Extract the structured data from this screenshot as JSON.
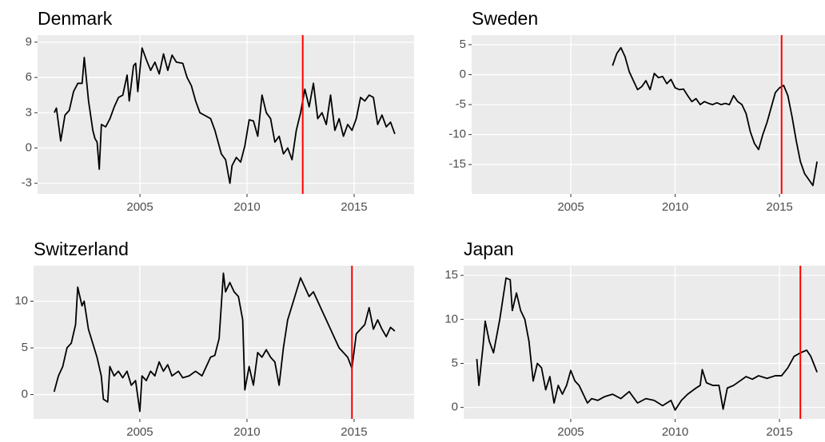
{
  "chart_data": [
    {
      "type": "line",
      "title": "Denmark",
      "color": "#000000",
      "x": [
        2001.0,
        2001.1,
        2001.3,
        2001.5,
        2001.7,
        2001.9,
        2002.1,
        2002.3,
        2002.4,
        2002.6,
        2002.8,
        2002.9,
        2003.0,
        2003.1,
        2003.2,
        2003.4,
        2003.6,
        2003.8,
        2004.0,
        2004.2,
        2004.4,
        2004.5,
        2004.7,
        2004.8,
        2004.9,
        2005.1,
        2005.3,
        2005.5,
        2005.7,
        2005.9,
        2006.1,
        2006.3,
        2006.5,
        2006.7,
        2007.0,
        2007.2,
        2007.4,
        2007.6,
        2007.8,
        2008.0,
        2008.3,
        2008.5,
        2008.8,
        2009.0,
        2009.2,
        2009.3,
        2009.5,
        2009.7,
        2009.9,
        2010.1,
        2010.3,
        2010.5,
        2010.7,
        2010.9,
        2011.1,
        2011.3,
        2011.5,
        2011.7,
        2011.9,
        2012.1,
        2012.3,
        2012.5,
        2012.7,
        2012.9,
        2013.1,
        2013.3,
        2013.5,
        2013.7,
        2013.9,
        2014.1,
        2014.3,
        2014.5,
        2014.7,
        2014.9,
        2015.1,
        2015.3,
        2015.5,
        2015.7,
        2015.9,
        2016.1,
        2016.3,
        2016.5,
        2016.7,
        2016.9
      ],
      "values": [
        3.0,
        3.4,
        0.6,
        2.8,
        3.2,
        4.8,
        5.5,
        5.5,
        7.7,
        4.0,
        1.5,
        0.8,
        0.5,
        -1.8,
        2.0,
        1.8,
        2.5,
        3.5,
        4.3,
        4.5,
        6.2,
        4.0,
        7.0,
        7.2,
        4.8,
        8.5,
        7.5,
        6.6,
        7.3,
        6.3,
        8.0,
        6.6,
        7.9,
        7.3,
        7.2,
        6.0,
        5.3,
        4.0,
        3.0,
        2.8,
        2.5,
        1.5,
        -0.5,
        -1.0,
        -3.0,
        -1.5,
        -0.8,
        -1.2,
        0.2,
        2.4,
        2.3,
        1.0,
        4.5,
        3.0,
        2.5,
        0.5,
        1.0,
        -0.5,
        0.0,
        -1.0,
        1.5,
        3.0,
        5.0,
        3.5,
        5.5,
        2.5,
        3.0,
        2.0,
        4.5,
        1.5,
        2.5,
        1.0,
        2.0,
        1.5,
        2.5,
        4.3,
        4.0,
        4.5,
        4.3,
        2.0,
        2.8,
        1.8,
        2.2,
        1.2
      ],
      "xlim": [
        2000.22,
        2017.8
      ],
      "xticks": [
        2005,
        2010,
        2015
      ],
      "ylim": [
        -3.9,
        9.6
      ],
      "yticks": [
        -3,
        0,
        3,
        6,
        9
      ],
      "vline": 2012.6,
      "vline_color": "#ff0000",
      "grid": true
    },
    {
      "type": "line",
      "title": "Sweden",
      "color": "#000000",
      "x": [
        2007.0,
        2007.2,
        2007.4,
        2007.6,
        2007.8,
        2008.0,
        2008.2,
        2008.4,
        2008.6,
        2008.8,
        2009.0,
        2009.2,
        2009.4,
        2009.6,
        2009.8,
        2010.0,
        2010.2,
        2010.4,
        2010.6,
        2010.8,
        2011.0,
        2011.2,
        2011.4,
        2011.6,
        2011.8,
        2012.0,
        2012.2,
        2012.4,
        2012.6,
        2012.8,
        2013.0,
        2013.2,
        2013.4,
        2013.6,
        2013.8,
        2014.0,
        2014.2,
        2014.4,
        2014.6,
        2014.8,
        2015.0,
        2015.2,
        2015.4,
        2015.6,
        2015.8,
        2016.0,
        2016.2,
        2016.4,
        2016.6,
        2016.8
      ],
      "values": [
        1.5,
        3.5,
        4.5,
        3.0,
        0.5,
        -1.0,
        -2.5,
        -2.0,
        -1.0,
        -2.5,
        0.2,
        -0.5,
        -0.3,
        -1.5,
        -0.8,
        -2.2,
        -2.5,
        -2.4,
        -3.5,
        -4.5,
        -4.0,
        -5.0,
        -4.5,
        -4.8,
        -5.0,
        -4.7,
        -5.0,
        -4.8,
        -5.0,
        -3.5,
        -4.5,
        -5.0,
        -6.5,
        -9.5,
        -11.5,
        -12.5,
        -10.0,
        -8.0,
        -5.5,
        -3.0,
        -2.2,
        -1.8,
        -3.5,
        -7.0,
        -11.0,
        -14.5,
        -16.5,
        -17.5,
        -18.5,
        -14.5
      ],
      "xlim": [
        2000.25,
        2017.18
      ],
      "xticks": [
        2005,
        2010,
        2015
      ],
      "ylim": [
        -19.9,
        6.6
      ],
      "yticks": [
        -15,
        -10,
        -5,
        0,
        5
      ],
      "vline": 2015.1,
      "vline_color": "#ff0000",
      "grid": true
    },
    {
      "type": "line",
      "title": "Switzerland",
      "color": "#000000",
      "x": [
        2001.0,
        2001.2,
        2001.4,
        2001.6,
        2001.8,
        2002.0,
        2002.1,
        2002.3,
        2002.4,
        2002.6,
        2002.8,
        2003.0,
        2003.2,
        2003.3,
        2003.5,
        2003.6,
        2003.8,
        2004.0,
        2004.2,
        2004.4,
        2004.6,
        2004.8,
        2005.0,
        2005.1,
        2005.3,
        2005.5,
        2005.7,
        2005.9,
        2006.1,
        2006.3,
        2006.5,
        2006.8,
        2007.0,
        2007.3,
        2007.6,
        2007.9,
        2008.1,
        2008.3,
        2008.5,
        2008.7,
        2008.9,
        2009.0,
        2009.2,
        2009.4,
        2009.6,
        2009.8,
        2009.9,
        2010.1,
        2010.3,
        2010.5,
        2010.7,
        2010.9,
        2011.1,
        2011.3,
        2011.5,
        2011.7,
        2011.9,
        2012.1,
        2012.3,
        2012.5,
        2012.7,
        2012.9,
        2013.1,
        2013.3,
        2013.5,
        2013.7,
        2013.9,
        2014.1,
        2014.3,
        2014.5,
        2014.7,
        2014.9,
        2015.1,
        2015.3,
        2015.5,
        2015.7,
        2015.9,
        2016.1,
        2016.3,
        2016.5,
        2016.7,
        2016.9
      ],
      "values": [
        0.3,
        2.0,
        3.0,
        5.0,
        5.5,
        7.5,
        11.5,
        9.5,
        10.0,
        7.0,
        5.5,
        4.0,
        2.0,
        -0.5,
        -0.8,
        3.0,
        2.0,
        2.5,
        1.8,
        2.5,
        1.0,
        1.5,
        -1.8,
        2.0,
        1.5,
        2.5,
        2.0,
        3.5,
        2.5,
        3.2,
        2.0,
        2.5,
        1.8,
        2.0,
        2.5,
        2.0,
        3.0,
        4.0,
        4.2,
        6.0,
        13.0,
        11.0,
        12.0,
        11.0,
        10.5,
        8.0,
        0.5,
        3.0,
        1.0,
        4.5,
        4.0,
        4.8,
        4.0,
        3.5,
        1.0,
        5.0,
        8.0,
        9.5,
        11.0,
        12.5,
        11.5,
        10.5,
        11.0,
        10.0,
        9.0,
        8.0,
        7.0,
        6.0,
        5.0,
        4.5,
        4.0,
        2.8,
        6.5,
        7.0,
        7.5,
        9.3,
        7.0,
        8.0,
        7.0,
        6.2,
        7.2,
        6.8
      ],
      "xlim": [
        2000.04,
        2017.8
      ],
      "xticks": [
        2005,
        2010,
        2015
      ],
      "ylim": [
        -2.6,
        13.8
      ],
      "yticks": [
        0,
        5,
        10
      ],
      "vline": 2014.9,
      "vline_color": "#ff0000",
      "grid": true
    },
    {
      "type": "line",
      "title": "Japan",
      "color": "#000000",
      "x": [
        2000.5,
        2000.6,
        2000.8,
        2000.9,
        2001.1,
        2001.3,
        2001.6,
        2001.9,
        2002.1,
        2002.2,
        2002.4,
        2002.6,
        2002.8,
        2003.0,
        2003.2,
        2003.4,
        2003.6,
        2003.8,
        2004.0,
        2004.2,
        2004.4,
        2004.6,
        2004.8,
        2005.0,
        2005.2,
        2005.4,
        2005.6,
        2005.8,
        2006.0,
        2006.3,
        2006.6,
        2007.0,
        2007.4,
        2007.8,
        2008.2,
        2008.6,
        2009.0,
        2009.4,
        2009.8,
        2010.0,
        2010.3,
        2010.6,
        2011.0,
        2011.2,
        2011.3,
        2011.5,
        2011.8,
        2012.1,
        2012.3,
        2012.5,
        2012.8,
        2013.1,
        2013.4,
        2013.7,
        2014.0,
        2014.4,
        2014.8,
        2015.1,
        2015.4,
        2015.7,
        2016.0,
        2016.3,
        2016.5,
        2016.8
      ],
      "values": [
        5.5,
        2.5,
        7.0,
        9.8,
        7.5,
        6.2,
        10.0,
        14.7,
        14.5,
        11.0,
        13.0,
        11.0,
        10.0,
        7.5,
        3.0,
        5.0,
        4.5,
        2.0,
        3.5,
        0.5,
        2.5,
        1.5,
        2.5,
        4.2,
        3.0,
        2.5,
        1.5,
        0.5,
        1.0,
        0.8,
        1.2,
        1.5,
        1.0,
        1.8,
        0.5,
        1.0,
        0.8,
        0.2,
        0.8,
        -0.3,
        0.8,
        1.5,
        2.2,
        2.5,
        4.3,
        2.8,
        2.5,
        2.5,
        -0.2,
        2.2,
        2.5,
        3.0,
        3.5,
        3.2,
        3.6,
        3.3,
        3.6,
        3.6,
        4.5,
        5.8,
        6.2,
        6.5,
        5.8,
        4.0
      ],
      "xlim": [
        1999.87,
        2017.18
      ],
      "xticks": [
        2005,
        2010,
        2015
      ],
      "ylim": [
        -1.3,
        16.1
      ],
      "yticks": [
        0,
        5,
        10,
        15
      ],
      "vline": 2016.0,
      "vline_color": "#ff0000",
      "grid": true
    }
  ]
}
